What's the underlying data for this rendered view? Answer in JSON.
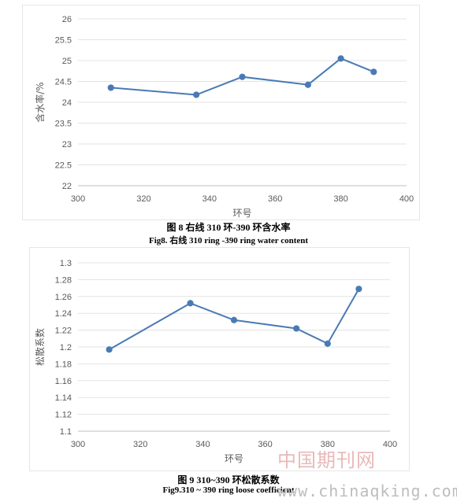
{
  "chart_data": [
    {
      "type": "line",
      "x": [
        310,
        336,
        350,
        370,
        380,
        390
      ],
      "y": [
        24.35,
        24.18,
        24.61,
        24.42,
        25.05,
        24.73
      ],
      "xlabel": "环号",
      "ylabel": "含水率/%",
      "xlim": [
        300,
        400
      ],
      "ylim": [
        22,
        26
      ],
      "xticks": [
        "300",
        "320",
        "340",
        "360",
        "380",
        "400"
      ],
      "yticks": [
        "22",
        "22.5",
        "23",
        "23.5",
        "24",
        "24.5",
        "25",
        "25.5",
        "26"
      ],
      "grid": true,
      "color": "#4a7ab5"
    },
    {
      "type": "line",
      "x": [
        310,
        336,
        350,
        370,
        380,
        390
      ],
      "y": [
        1.197,
        1.252,
        1.232,
        1.222,
        1.204,
        1.269
      ],
      "xlabel": "环号",
      "ylabel": "松散系数",
      "xlim": [
        300,
        400
      ],
      "ylim": [
        1.1,
        1.3
      ],
      "xticks": [
        "300",
        "320",
        "340",
        "360",
        "380",
        "400"
      ],
      "yticks": [
        "1.1",
        "1.12",
        "1.14",
        "1.16",
        "1.18",
        "1.2",
        "1.22",
        "1.24",
        "1.26",
        "1.28",
        "1.3"
      ],
      "grid": true,
      "color": "#4a7ab5"
    }
  ],
  "captions": {
    "fig8_cn": "图 8  右线 310 环-390 环含水率",
    "fig8_en": "Fig8.  右线 310 ring -390 ring water content",
    "fig9_cn": "图 9  310~390 环松散系数",
    "fig9_en": "Fig9.310 ~ 390 ring loose coefficient"
  },
  "watermark": {
    "cn": "中国期刊网",
    "url": "www.chinaqking.com"
  }
}
